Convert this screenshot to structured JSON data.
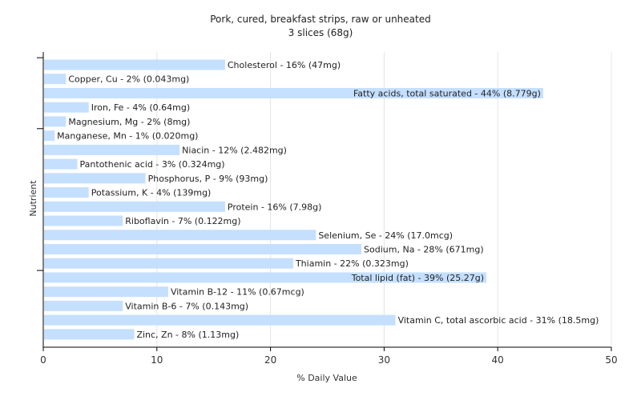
{
  "chart_data": {
    "type": "bar",
    "orientation": "horizontal",
    "title": "Pork, cured, breakfast strips, raw or unheated",
    "subtitle": "3 slices (68g)",
    "xlabel": "% Daily Value",
    "ylabel": "Nutrient",
    "xlim": [
      0,
      50
    ],
    "xticks": [
      0,
      10,
      20,
      30,
      40,
      50
    ],
    "grid": true,
    "bar_color": "#c5dfff",
    "bars": [
      {
        "label": "Cholesterol - 16% (47mg)",
        "value": 16
      },
      {
        "label": "Copper, Cu - 2% (0.043mg)",
        "value": 2
      },
      {
        "label": "Fatty acids, total saturated - 44% (8.779g)",
        "value": 44
      },
      {
        "label": "Iron, Fe - 4% (0.64mg)",
        "value": 4
      },
      {
        "label": "Magnesium, Mg - 2% (8mg)",
        "value": 2
      },
      {
        "label": "Manganese, Mn - 1% (0.020mg)",
        "value": 1
      },
      {
        "label": "Niacin - 12% (2.482mg)",
        "value": 12
      },
      {
        "label": "Pantothenic acid - 3% (0.324mg)",
        "value": 3
      },
      {
        "label": "Phosphorus, P - 9% (93mg)",
        "value": 9
      },
      {
        "label": "Potassium, K - 4% (139mg)",
        "value": 4
      },
      {
        "label": "Protein - 16% (7.98g)",
        "value": 16
      },
      {
        "label": "Riboflavin - 7% (0.122mg)",
        "value": 7
      },
      {
        "label": "Selenium, Se - 24% (17.0mcg)",
        "value": 24
      },
      {
        "label": "Sodium, Na - 28% (671mg)",
        "value": 28
      },
      {
        "label": "Thiamin - 22% (0.323mg)",
        "value": 22
      },
      {
        "label": "Total lipid (fat) - 39% (25.27g)",
        "value": 39
      },
      {
        "label": "Vitamin B-12 - 11% (0.67mcg)",
        "value": 11
      },
      {
        "label": "Vitamin B-6 - 7% (0.143mg)",
        "value": 7
      },
      {
        "label": "Vitamin C, total ascorbic acid - 31% (18.5mg)",
        "value": 31
      },
      {
        "label": "Zinc, Zn - 8% (1.13mg)",
        "value": 8
      }
    ]
  }
}
